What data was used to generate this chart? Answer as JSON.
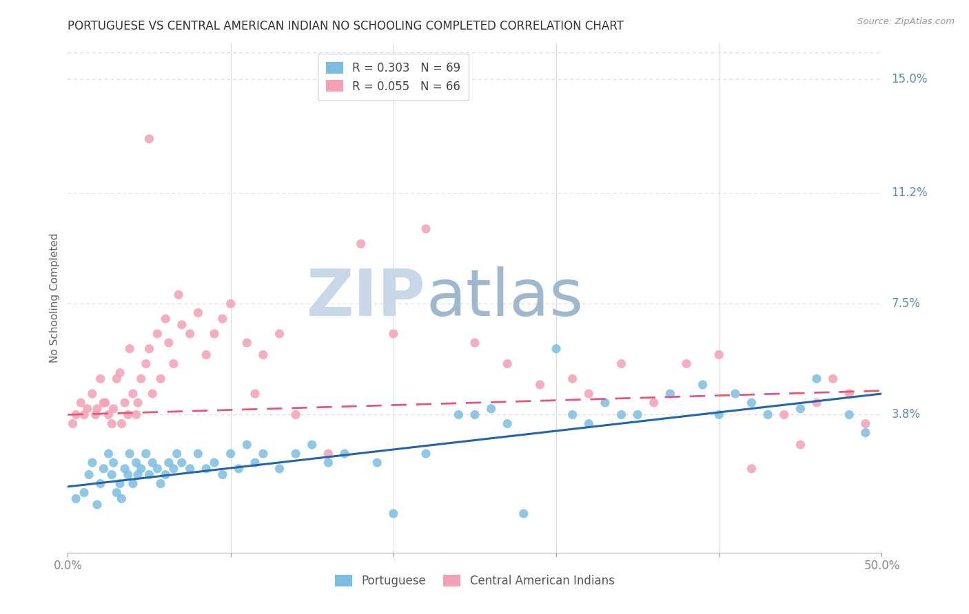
{
  "title": "PORTUGUESE VS CENTRAL AMERICAN INDIAN NO SCHOOLING COMPLETED CORRELATION CHART",
  "source": "Source: ZipAtlas.com",
  "ylabel": "No Schooling Completed",
  "ytick_labels": [
    "3.8%",
    "7.5%",
    "11.2%",
    "15.0%"
  ],
  "ytick_values": [
    0.038,
    0.075,
    0.112,
    0.15
  ],
  "xtick_values": [
    0.0,
    0.1,
    0.2,
    0.3,
    0.4,
    0.5
  ],
  "xlim": [
    0.0,
    0.5
  ],
  "ylim": [
    -0.008,
    0.162
  ],
  "legend_r_portuguese": "R = 0.303",
  "legend_n_portuguese": "N = 69",
  "legend_r_central": "R = 0.055",
  "legend_n_central": "N = 66",
  "portuguese_color": "#7bbde0",
  "central_color": "#f4a0b5",
  "portuguese_line_color": "#2166ac",
  "central_line_color": "#e8547a",
  "axis_label_color": "#5b8db8",
  "grid_color": "#d8d8d8",
  "watermark_zip_color": "#c8d8e8",
  "watermark_atlas_color": "#a0b8cc",
  "portuguese_x": [
    0.005,
    0.01,
    0.013,
    0.015,
    0.018,
    0.02,
    0.022,
    0.025,
    0.027,
    0.028,
    0.03,
    0.032,
    0.033,
    0.035,
    0.037,
    0.038,
    0.04,
    0.042,
    0.043,
    0.045,
    0.048,
    0.05,
    0.052,
    0.055,
    0.057,
    0.06,
    0.062,
    0.065,
    0.067,
    0.07,
    0.075,
    0.08,
    0.085,
    0.09,
    0.095,
    0.1,
    0.105,
    0.11,
    0.115,
    0.12,
    0.13,
    0.14,
    0.15,
    0.16,
    0.17,
    0.19,
    0.2,
    0.22,
    0.24,
    0.25,
    0.26,
    0.27,
    0.28,
    0.3,
    0.31,
    0.32,
    0.33,
    0.34,
    0.35,
    0.37,
    0.39,
    0.4,
    0.41,
    0.42,
    0.43,
    0.45,
    0.46,
    0.48,
    0.49
  ],
  "portuguese_y": [
    0.01,
    0.012,
    0.018,
    0.022,
    0.008,
    0.015,
    0.02,
    0.025,
    0.018,
    0.022,
    0.012,
    0.015,
    0.01,
    0.02,
    0.018,
    0.025,
    0.015,
    0.022,
    0.018,
    0.02,
    0.025,
    0.018,
    0.022,
    0.02,
    0.015,
    0.018,
    0.022,
    0.02,
    0.025,
    0.022,
    0.02,
    0.025,
    0.02,
    0.022,
    0.018,
    0.025,
    0.02,
    0.028,
    0.022,
    0.025,
    0.02,
    0.025,
    0.028,
    0.022,
    0.025,
    0.022,
    0.005,
    0.025,
    0.038,
    0.038,
    0.04,
    0.035,
    0.005,
    0.06,
    0.038,
    0.035,
    0.042,
    0.038,
    0.038,
    0.045,
    0.048,
    0.038,
    0.045,
    0.042,
    0.038,
    0.04,
    0.05,
    0.038,
    0.032
  ],
  "central_x": [
    0.003,
    0.005,
    0.008,
    0.01,
    0.012,
    0.015,
    0.017,
    0.018,
    0.02,
    0.022,
    0.023,
    0.025,
    0.027,
    0.028,
    0.03,
    0.032,
    0.033,
    0.035,
    0.037,
    0.038,
    0.04,
    0.042,
    0.043,
    0.045,
    0.048,
    0.05,
    0.052,
    0.055,
    0.057,
    0.06,
    0.062,
    0.065,
    0.068,
    0.07,
    0.075,
    0.08,
    0.085,
    0.09,
    0.095,
    0.1,
    0.11,
    0.115,
    0.12,
    0.13,
    0.14,
    0.16,
    0.18,
    0.2,
    0.22,
    0.25,
    0.27,
    0.29,
    0.31,
    0.32,
    0.34,
    0.36,
    0.38,
    0.4,
    0.42,
    0.44,
    0.45,
    0.46,
    0.47,
    0.48,
    0.49,
    0.05
  ],
  "central_y": [
    0.035,
    0.038,
    0.042,
    0.038,
    0.04,
    0.045,
    0.038,
    0.04,
    0.05,
    0.042,
    0.042,
    0.038,
    0.035,
    0.04,
    0.05,
    0.052,
    0.035,
    0.042,
    0.038,
    0.06,
    0.045,
    0.038,
    0.042,
    0.05,
    0.055,
    0.06,
    0.045,
    0.065,
    0.05,
    0.07,
    0.062,
    0.055,
    0.078,
    0.068,
    0.065,
    0.072,
    0.058,
    0.065,
    0.07,
    0.075,
    0.062,
    0.045,
    0.058,
    0.065,
    0.038,
    0.025,
    0.095,
    0.065,
    0.1,
    0.062,
    0.055,
    0.048,
    0.05,
    0.045,
    0.055,
    0.042,
    0.055,
    0.058,
    0.02,
    0.038,
    0.028,
    0.042,
    0.05,
    0.045,
    0.035,
    0.13
  ],
  "port_line_x": [
    0.0,
    0.5
  ],
  "port_line_y": [
    0.014,
    0.045
  ],
  "cent_line_x": [
    0.0,
    0.5
  ],
  "cent_line_y": [
    0.038,
    0.046
  ]
}
